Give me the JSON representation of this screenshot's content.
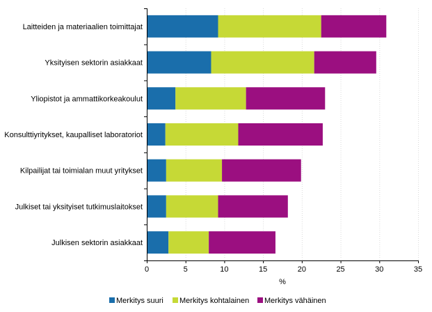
{
  "chart_data": {
    "type": "bar",
    "orientation": "horizontal",
    "stacked": true,
    "categories": [
      "Laitteiden ja materiaalien toimittajat",
      "Yksityisen sektorin asiakkaat",
      "Yliopistot ja ammattikorkeakoulut",
      "Konsulttiyritykset, kaupalliset laboratoriot",
      "Kilpailijat tai toimialan muut yritykset",
      "Julkiset tai yksityiset tutkimuslaitokset",
      "Julkisen sektorin asiakkaat"
    ],
    "series": [
      {
        "name": "Merkitys suuri",
        "color": "#1a6eab",
        "values": [
          9.2,
          8.3,
          3.7,
          2.4,
          2.5,
          2.5,
          2.8
        ]
      },
      {
        "name": "Merkitys kohtalainen",
        "color": "#c6d936",
        "values": [
          13.3,
          13.3,
          9.1,
          9.4,
          7.2,
          6.7,
          5.2
        ]
      },
      {
        "name": "Merkitys vähäinen",
        "color": "#9b0f80",
        "values": [
          8.4,
          8.0,
          10.2,
          10.9,
          10.2,
          9.0,
          8.6
        ]
      }
    ],
    "xlabel": "%",
    "ylabel": "",
    "xlim": [
      0,
      35
    ],
    "xticks": [
      0,
      5,
      10,
      15,
      20,
      25,
      30,
      35
    ],
    "grid": "vertical",
    "legend_position": "bottom"
  }
}
